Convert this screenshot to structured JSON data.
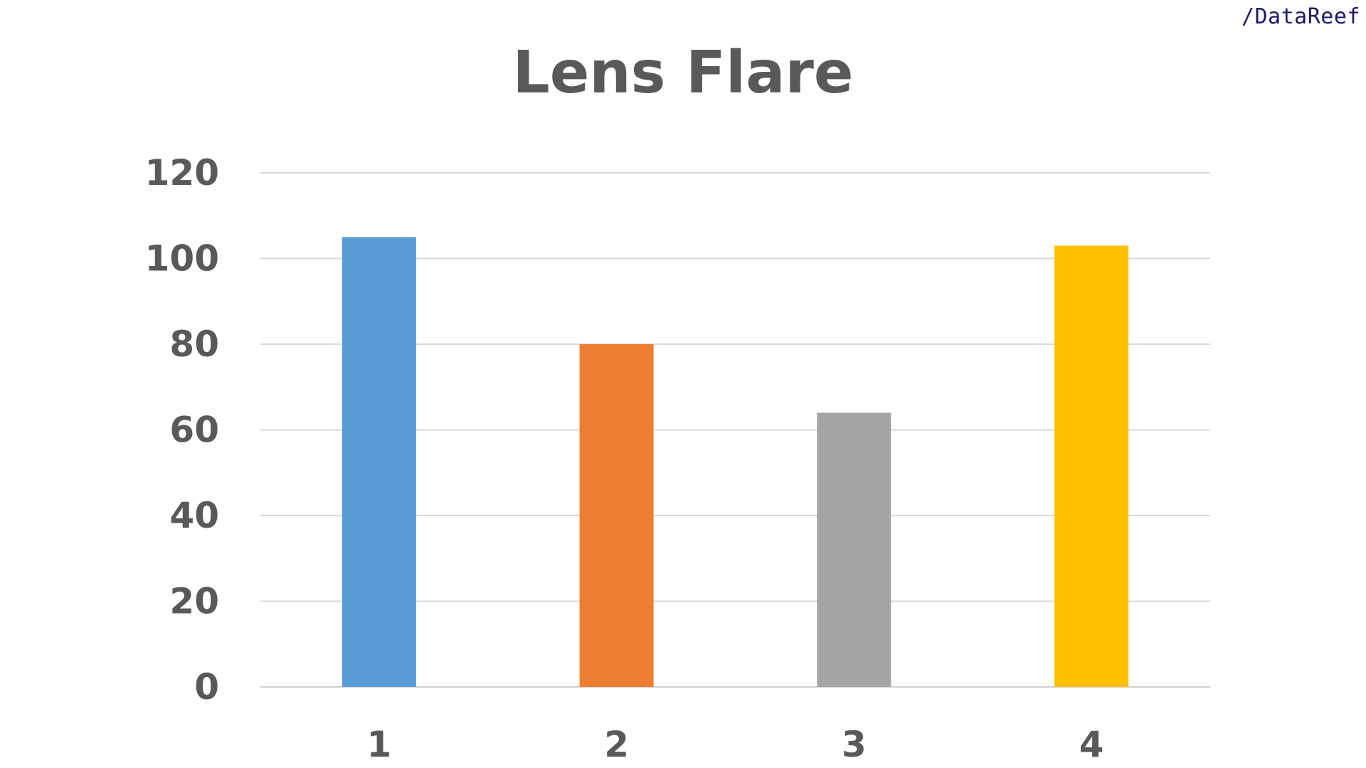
{
  "brand": "/DataReef",
  "chart_data": {
    "type": "bar",
    "title": "Lens Flare",
    "categories": [
      "1",
      "2",
      "3",
      "4"
    ],
    "values": [
      105,
      80,
      64,
      103
    ],
    "colors": [
      "#5b9bd5",
      "#ed7d31",
      "#a5a5a5",
      "#ffc000"
    ],
    "ylim": [
      0,
      120
    ],
    "yticks": [
      0,
      20,
      40,
      60,
      80,
      100,
      120
    ],
    "grid": true,
    "legend": "none",
    "xlabel": "",
    "ylabel": ""
  }
}
